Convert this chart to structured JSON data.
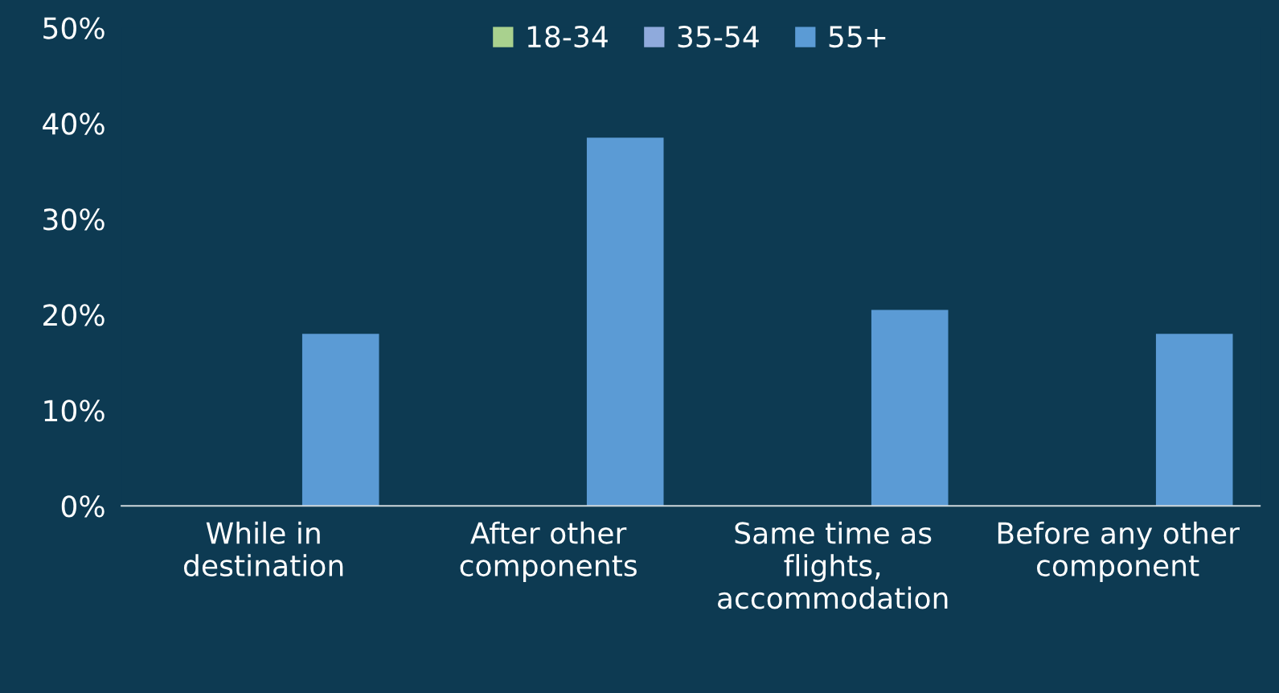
{
  "chart_data": {
    "type": "bar",
    "categories": [
      "While in\ndestination",
      "After other\ncomponents",
      "Same time as\nflights,\naccommodation",
      "Before any other\ncomponent"
    ],
    "series": [
      {
        "name": "18-34",
        "color": "#a9d18e",
        "values": [
          null,
          null,
          null,
          null
        ]
      },
      {
        "name": "35-54",
        "color": "#8faadc",
        "values": [
          null,
          null,
          null,
          null
        ]
      },
      {
        "name": "55+",
        "color": "#5b9bd5",
        "values": [
          18,
          38.5,
          20.5,
          18
        ]
      }
    ],
    "ylim": [
      0,
      50
    ],
    "yticks": [
      {
        "value": 0,
        "label": "0%"
      },
      {
        "value": 10,
        "label": "10%"
      },
      {
        "value": 20,
        "label": "20%"
      },
      {
        "value": 30,
        "label": "30%"
      },
      {
        "value": 40,
        "label": "40%"
      },
      {
        "value": 50,
        "label": "50%"
      }
    ],
    "grid": false,
    "legend": "top"
  }
}
